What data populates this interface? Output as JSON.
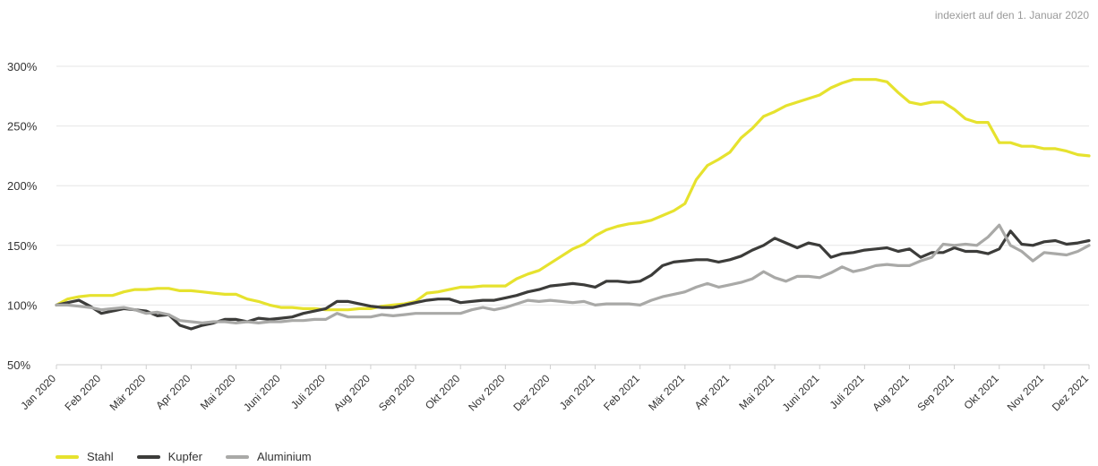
{
  "subtitle": "indexiert auf den 1. Januar 2020",
  "chart_data": {
    "type": "line",
    "title": "",
    "xlabel": "",
    "ylabel": "",
    "ylim": [
      50,
      300
    ],
    "yticks": [
      50,
      100,
      150,
      200,
      250,
      300
    ],
    "ytick_labels": [
      "50%",
      "100%",
      "150%",
      "200%",
      "250%",
      "300%"
    ],
    "xlim": [
      0,
      23
    ],
    "xticks": [
      0,
      1,
      2,
      3,
      4,
      5,
      6,
      7,
      8,
      9,
      10,
      11,
      12,
      13,
      14,
      15,
      16,
      17,
      18,
      19,
      20,
      21,
      22,
      23
    ],
    "xtick_labels": [
      "Jan 2020",
      "Feb 2020",
      "Mär 2020",
      "Apr 2020",
      "Mai 2020",
      "Juni 2020",
      "Juli 2020",
      "Aug 2020",
      "Sep 2020",
      "Okt 2020",
      "Nov 2020",
      "Dez 2020",
      "Jan 2021",
      "Feb 2021",
      "Mär 2021",
      "Apr 2021",
      "Mai 2021",
      "Juni 2021",
      "Juli 2021",
      "Aug 2021",
      "Sep 2021",
      "Okt 2021",
      "Nov 2021",
      "Dez 2021"
    ],
    "grid": true,
    "legend_position": "bottom-left",
    "series": [
      {
        "name": "Stahl",
        "color": "#e6e22e",
        "points": [
          [
            0,
            100
          ],
          [
            0.25,
            105
          ],
          [
            0.5,
            107
          ],
          [
            0.75,
            108
          ],
          [
            1,
            108
          ],
          [
            1.25,
            108
          ],
          [
            1.5,
            111
          ],
          [
            1.75,
            113
          ],
          [
            2,
            113
          ],
          [
            2.25,
            114
          ],
          [
            2.5,
            114
          ],
          [
            2.75,
            112
          ],
          [
            3,
            112
          ],
          [
            3.25,
            111
          ],
          [
            3.5,
            110
          ],
          [
            3.75,
            109
          ],
          [
            4,
            109
          ],
          [
            4.25,
            105
          ],
          [
            4.5,
            103
          ],
          [
            4.75,
            100
          ],
          [
            5,
            98
          ],
          [
            5.25,
            98
          ],
          [
            5.5,
            97
          ],
          [
            5.75,
            97
          ],
          [
            6,
            96
          ],
          [
            6.25,
            96
          ],
          [
            6.5,
            96
          ],
          [
            6.75,
            97
          ],
          [
            7,
            97
          ],
          [
            7.25,
            99
          ],
          [
            7.5,
            100
          ],
          [
            7.75,
            101
          ],
          [
            8,
            103
          ],
          [
            8.25,
            110
          ],
          [
            8.5,
            111
          ],
          [
            8.75,
            113
          ],
          [
            9,
            115
          ],
          [
            9.25,
            115
          ],
          [
            9.5,
            116
          ],
          [
            9.75,
            116
          ],
          [
            10,
            116
          ],
          [
            10.25,
            122
          ],
          [
            10.5,
            126
          ],
          [
            10.75,
            129
          ],
          [
            11,
            135
          ],
          [
            11.25,
            141
          ],
          [
            11.5,
            147
          ],
          [
            11.75,
            151
          ],
          [
            12,
            158
          ],
          [
            12.25,
            163
          ],
          [
            12.5,
            166
          ],
          [
            12.75,
            168
          ],
          [
            13,
            169
          ],
          [
            13.25,
            171
          ],
          [
            13.5,
            175
          ],
          [
            13.75,
            179
          ],
          [
            14,
            185
          ],
          [
            14.25,
            205
          ],
          [
            14.5,
            217
          ],
          [
            14.75,
            222
          ],
          [
            15,
            228
          ],
          [
            15.25,
            240
          ],
          [
            15.5,
            248
          ],
          [
            15.75,
            258
          ],
          [
            16,
            262
          ],
          [
            16.25,
            267
          ],
          [
            16.5,
            270
          ],
          [
            16.75,
            273
          ],
          [
            17,
            276
          ],
          [
            17.25,
            282
          ],
          [
            17.5,
            286
          ],
          [
            17.75,
            289
          ],
          [
            18,
            289
          ],
          [
            18.25,
            289
          ],
          [
            18.5,
            287
          ],
          [
            18.75,
            278
          ],
          [
            19,
            270
          ],
          [
            19.25,
            268
          ],
          [
            19.5,
            270
          ],
          [
            19.75,
            270
          ],
          [
            20,
            264
          ],
          [
            20.25,
            256
          ],
          [
            20.5,
            253
          ],
          [
            20.75,
            253
          ],
          [
            21,
            236
          ],
          [
            21.25,
            236
          ],
          [
            21.5,
            233
          ],
          [
            21.75,
            233
          ],
          [
            22,
            231
          ],
          [
            22.25,
            231
          ],
          [
            22.5,
            229
          ],
          [
            22.75,
            226
          ],
          [
            23,
            225
          ]
        ]
      },
      {
        "name": "Kupfer",
        "color": "#3c3c3a",
        "points": [
          [
            0,
            100
          ],
          [
            0.25,
            102
          ],
          [
            0.5,
            104
          ],
          [
            0.75,
            99
          ],
          [
            1,
            93
          ],
          [
            1.25,
            95
          ],
          [
            1.5,
            97
          ],
          [
            1.75,
            96
          ],
          [
            2,
            95
          ],
          [
            2.25,
            91
          ],
          [
            2.5,
            92
          ],
          [
            2.75,
            83
          ],
          [
            3,
            80
          ],
          [
            3.25,
            83
          ],
          [
            3.5,
            85
          ],
          [
            3.75,
            88
          ],
          [
            4,
            88
          ],
          [
            4.25,
            86
          ],
          [
            4.5,
            89
          ],
          [
            4.75,
            88
          ],
          [
            5,
            89
          ],
          [
            5.25,
            90
          ],
          [
            5.5,
            93
          ],
          [
            5.75,
            95
          ],
          [
            6,
            97
          ],
          [
            6.25,
            103
          ],
          [
            6.5,
            103
          ],
          [
            6.75,
            101
          ],
          [
            7,
            99
          ],
          [
            7.25,
            98
          ],
          [
            7.5,
            98
          ],
          [
            7.75,
            100
          ],
          [
            8,
            102
          ],
          [
            8.25,
            104
          ],
          [
            8.5,
            105
          ],
          [
            8.75,
            105
          ],
          [
            9,
            102
          ],
          [
            9.25,
            103
          ],
          [
            9.5,
            104
          ],
          [
            9.75,
            104
          ],
          [
            10,
            106
          ],
          [
            10.25,
            108
          ],
          [
            10.5,
            111
          ],
          [
            10.75,
            113
          ],
          [
            11,
            116
          ],
          [
            11.25,
            117
          ],
          [
            11.5,
            118
          ],
          [
            11.75,
            117
          ],
          [
            12,
            115
          ],
          [
            12.25,
            120
          ],
          [
            12.5,
            120
          ],
          [
            12.75,
            119
          ],
          [
            13,
            120
          ],
          [
            13.25,
            125
          ],
          [
            13.5,
            133
          ],
          [
            13.75,
            136
          ],
          [
            14,
            137
          ],
          [
            14.25,
            138
          ],
          [
            14.5,
            138
          ],
          [
            14.75,
            136
          ],
          [
            15,
            138
          ],
          [
            15.25,
            141
          ],
          [
            15.5,
            146
          ],
          [
            15.75,
            150
          ],
          [
            16,
            156
          ],
          [
            16.25,
            152
          ],
          [
            16.5,
            148
          ],
          [
            16.75,
            152
          ],
          [
            17,
            150
          ],
          [
            17.25,
            140
          ],
          [
            17.5,
            143
          ],
          [
            17.75,
            144
          ],
          [
            18,
            146
          ],
          [
            18.25,
            147
          ],
          [
            18.5,
            148
          ],
          [
            18.75,
            145
          ],
          [
            19,
            147
          ],
          [
            19.25,
            140
          ],
          [
            19.5,
            144
          ],
          [
            19.75,
            144
          ],
          [
            20,
            148
          ],
          [
            20.25,
            145
          ],
          [
            20.5,
            145
          ],
          [
            20.75,
            143
          ],
          [
            21,
            147
          ],
          [
            21.25,
            162
          ],
          [
            21.5,
            151
          ],
          [
            21.75,
            150
          ],
          [
            22,
            153
          ],
          [
            22.25,
            154
          ],
          [
            22.5,
            151
          ],
          [
            22.75,
            152
          ],
          [
            23,
            154
          ]
        ]
      },
      {
        "name": "Aluminium",
        "color": "#a9a9a7",
        "points": [
          [
            0,
            100
          ],
          [
            0.25,
            100
          ],
          [
            0.5,
            99
          ],
          [
            0.75,
            98
          ],
          [
            1,
            96
          ],
          [
            1.25,
            97
          ],
          [
            1.5,
            98
          ],
          [
            1.75,
            96
          ],
          [
            2,
            93
          ],
          [
            2.25,
            94
          ],
          [
            2.5,
            92
          ],
          [
            2.75,
            87
          ],
          [
            3,
            86
          ],
          [
            3.25,
            85
          ],
          [
            3.5,
            86
          ],
          [
            3.75,
            86
          ],
          [
            4,
            85
          ],
          [
            4.25,
            86
          ],
          [
            4.5,
            85
          ],
          [
            4.75,
            86
          ],
          [
            5,
            86
          ],
          [
            5.25,
            87
          ],
          [
            5.5,
            87
          ],
          [
            5.75,
            88
          ],
          [
            6,
            88
          ],
          [
            6.25,
            93
          ],
          [
            6.5,
            90
          ],
          [
            6.75,
            90
          ],
          [
            7,
            90
          ],
          [
            7.25,
            92
          ],
          [
            7.5,
            91
          ],
          [
            7.75,
            92
          ],
          [
            8,
            93
          ],
          [
            8.25,
            93
          ],
          [
            8.5,
            93
          ],
          [
            8.75,
            93
          ],
          [
            9,
            93
          ],
          [
            9.25,
            96
          ],
          [
            9.5,
            98
          ],
          [
            9.75,
            96
          ],
          [
            10,
            98
          ],
          [
            10.25,
            101
          ],
          [
            10.5,
            104
          ],
          [
            10.75,
            103
          ],
          [
            11,
            104
          ],
          [
            11.25,
            103
          ],
          [
            11.5,
            102
          ],
          [
            11.75,
            103
          ],
          [
            12,
            100
          ],
          [
            12.25,
            101
          ],
          [
            12.5,
            101
          ],
          [
            12.75,
            101
          ],
          [
            13,
            100
          ],
          [
            13.25,
            104
          ],
          [
            13.5,
            107
          ],
          [
            13.75,
            109
          ],
          [
            14,
            111
          ],
          [
            14.25,
            115
          ],
          [
            14.5,
            118
          ],
          [
            14.75,
            115
          ],
          [
            15,
            117
          ],
          [
            15.25,
            119
          ],
          [
            15.5,
            122
          ],
          [
            15.75,
            128
          ],
          [
            16,
            123
          ],
          [
            16.25,
            120
          ],
          [
            16.5,
            124
          ],
          [
            16.75,
            124
          ],
          [
            17,
            123
          ],
          [
            17.25,
            127
          ],
          [
            17.5,
            132
          ],
          [
            17.75,
            128
          ],
          [
            18,
            130
          ],
          [
            18.25,
            133
          ],
          [
            18.5,
            134
          ],
          [
            18.75,
            133
          ],
          [
            19,
            133
          ],
          [
            19.25,
            137
          ],
          [
            19.5,
            140
          ],
          [
            19.75,
            151
          ],
          [
            20,
            150
          ],
          [
            20.25,
            151
          ],
          [
            20.5,
            150
          ],
          [
            20.75,
            157
          ],
          [
            21,
            167
          ],
          [
            21.25,
            150
          ],
          [
            21.5,
            145
          ],
          [
            21.75,
            137
          ],
          [
            22,
            144
          ],
          [
            22.25,
            143
          ],
          [
            22.5,
            142
          ],
          [
            22.75,
            145
          ],
          [
            23,
            150
          ]
        ]
      }
    ]
  }
}
